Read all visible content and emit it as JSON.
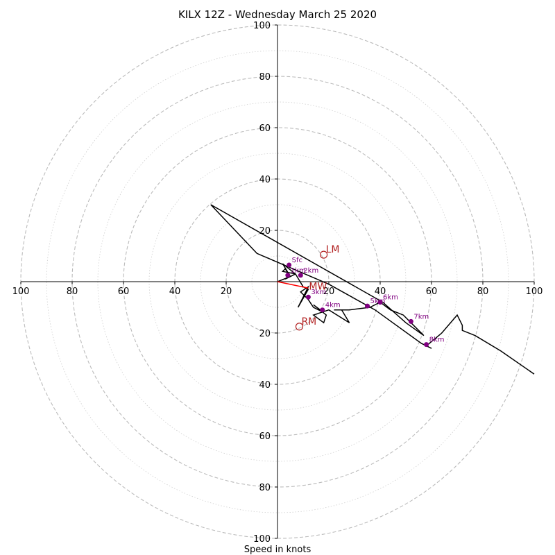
{
  "chart_data": {
    "type": "scatter",
    "subtype": "hodograph",
    "title": "KILX 12Z - Wednesday March 25 2020",
    "xlabel": "Speed in knots",
    "units": "knots",
    "xlim": [
      -100,
      100
    ],
    "ylim": [
      -100,
      100
    ],
    "tick_labels": {
      "left": [
        "100",
        "80",
        "60",
        "40",
        "20"
      ],
      "right": [
        "20",
        "40",
        "60",
        "80",
        "100"
      ],
      "top": [
        "100",
        "80",
        "60",
        "40",
        "20"
      ],
      "bottom": [
        "20",
        "40",
        "60",
        "80",
        "100"
      ]
    },
    "rings": {
      "major": [
        20,
        40,
        60,
        80,
        100
      ],
      "minor": [
        10,
        30,
        50,
        70,
        90
      ],
      "major_style": "dashed",
      "minor_style": "dotted",
      "color": "#bbbbbb"
    },
    "colors": {
      "hodograph": "#000000",
      "height_markers": "#800080",
      "mean_wind_line": "#ff0000",
      "storm_motion": "#b22222"
    },
    "hodograph_trace": [
      [
        0,
        0
      ],
      [
        5,
        2
      ],
      [
        3,
        5
      ],
      [
        2,
        4
      ],
      [
        7,
        3
      ],
      [
        2,
        7
      ],
      [
        5,
        2
      ],
      [
        3,
        1
      ],
      [
        7,
        3
      ],
      [
        10,
        -2
      ],
      [
        12,
        -3
      ],
      [
        8,
        -10
      ],
      [
        10,
        -6
      ],
      [
        12,
        -2
      ],
      [
        9,
        -4
      ],
      [
        12,
        -7
      ],
      [
        14,
        -10
      ],
      [
        18,
        -12
      ],
      [
        14,
        -9
      ],
      [
        19,
        -13
      ],
      [
        18,
        -16
      ],
      [
        14,
        -13
      ],
      [
        20,
        -11
      ],
      [
        28,
        -16
      ],
      [
        25,
        -11
      ],
      [
        22,
        -11
      ],
      [
        28,
        -11
      ],
      [
        36,
        -10
      ],
      [
        40,
        -8
      ],
      [
        44,
        -11
      ],
      [
        49,
        -13
      ],
      [
        52,
        -16
      ],
      [
        57,
        -21
      ],
      [
        50,
        -16
      ],
      [
        41,
        -8
      ],
      [
        -26,
        30
      ],
      [
        -8,
        11
      ],
      [
        20,
        -1
      ],
      [
        38,
        -11
      ],
      [
        56,
        -24
      ],
      [
        60,
        -26
      ],
      [
        58,
        -25
      ],
      [
        64,
        -20
      ],
      [
        70,
        -13
      ],
      [
        72,
        -17
      ],
      [
        72,
        -19
      ],
      [
        77,
        -21
      ],
      [
        87,
        -27
      ],
      [
        100,
        -36
      ]
    ],
    "height_markers": [
      {
        "label": "Sfc",
        "u": 4.5,
        "v": 6.5
      },
      {
        "label": "1km",
        "u": 4,
        "v": 2.5
      },
      {
        "label": "2km",
        "u": 9,
        "v": 2.5
      },
      {
        "label": "3km",
        "u": 12,
        "v": -6
      },
      {
        "label": "4km",
        "u": 17.5,
        "v": -11
      },
      {
        "label": "5km",
        "u": 35,
        "v": -9.5
      },
      {
        "label": "6km",
        "u": 40,
        "v": -8
      },
      {
        "label": "7km",
        "u": 52,
        "v": -15.5
      },
      {
        "label": "8km",
        "u": 58,
        "v": -24.5
      }
    ],
    "mean_wind": {
      "label": "MW",
      "u": 12,
      "v": -2.5
    },
    "storm_motion": [
      {
        "label": "LM",
        "u": 18,
        "v": 10.5
      },
      {
        "label": "RM",
        "u": 8.5,
        "v": -17.5
      }
    ]
  }
}
